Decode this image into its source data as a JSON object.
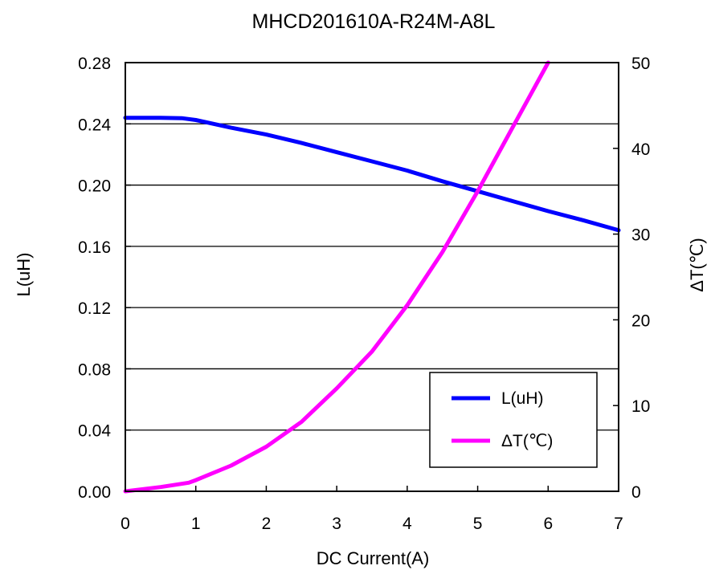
{
  "chart_data": {
    "type": "line",
    "title": "MHCD201610A-R24M-A8L",
    "xlabel": "DC Current(A)",
    "ylabel": "L(uH)",
    "y2label": "ΔT(℃)",
    "xlim": [
      0,
      7
    ],
    "ylim": [
      0,
      0.28
    ],
    "y2lim": [
      0,
      50
    ],
    "x_ticks": [
      "0",
      "1",
      "2",
      "3",
      "4",
      "5",
      "6",
      "7"
    ],
    "y_ticks": [
      "0.00",
      "0.04",
      "0.08",
      "0.12",
      "0.16",
      "0.20",
      "0.24",
      "0.28"
    ],
    "y2_ticks": [
      "0",
      "10",
      "20",
      "30",
      "40",
      "50"
    ],
    "grid": "horizontal",
    "legend_position": "bottom-right",
    "series": [
      {
        "name": "L(uH)",
        "axis": "left",
        "color": "#0000ff",
        "x": [
          0,
          0.5,
          0.8,
          1.0,
          1.2,
          1.5,
          2.0,
          2.5,
          3.0,
          3.5,
          4.0,
          4.5,
          5.0,
          5.5,
          6.0,
          6.5,
          7.0
        ],
        "y": [
          0.244,
          0.244,
          0.2437,
          0.2425,
          0.2405,
          0.2375,
          0.233,
          0.2275,
          0.2215,
          0.2155,
          0.2095,
          0.2025,
          0.196,
          0.1895,
          0.183,
          0.177,
          0.1705
        ]
      },
      {
        "name": "ΔT(℃)",
        "axis": "right",
        "color": "#ff00ff",
        "x": [
          0,
          0.5,
          0.9,
          1.0,
          1.5,
          2.0,
          2.5,
          3.0,
          3.5,
          4.0,
          4.5,
          5.0,
          5.5,
          6.0
        ],
        "y": [
          0,
          0.5,
          1.0,
          1.3,
          3.0,
          5.2,
          8.1,
          12.0,
          16.3,
          21.7,
          27.9,
          35.0,
          42.5,
          50.0
        ]
      }
    ]
  }
}
